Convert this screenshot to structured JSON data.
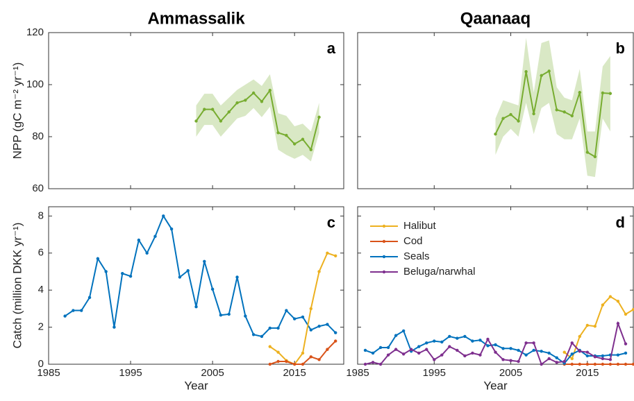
{
  "chart_data": [
    {
      "type": "line",
      "title": "Ammassalik",
      "panel_label": "a",
      "y_label": "NPP (gC m⁻² yr⁻¹)",
      "xlim": [
        1985,
        2021
      ],
      "xticks": [
        1985,
        1995,
        2005,
        2015
      ],
      "show_xtick_labels": false,
      "ylim": [
        60,
        120
      ],
      "yticks": [
        60,
        80,
        100,
        120
      ],
      "show_ytick_labels": true,
      "series": [
        {
          "color": "#77AC30",
          "x": [
            2003,
            2004,
            2005,
            2006,
            2007,
            2008,
            2009,
            2010,
            2011,
            2012,
            2013,
            2014,
            2015,
            2016,
            2017,
            2018
          ],
          "values": [
            86,
            90.5,
            90.5,
            86,
            89.5,
            93,
            94,
            96.8,
            93.5,
            97.8,
            81.5,
            80.5,
            77.2,
            79,
            75,
            87.5
          ],
          "band_upper": [
            92,
            96.5,
            96.5,
            92,
            95,
            98,
            100,
            102,
            99.5,
            104,
            89,
            88,
            84,
            85,
            82,
            93
          ],
          "band_lower": [
            80,
            84.5,
            84.5,
            80,
            83.5,
            87,
            88,
            91,
            87.5,
            91.5,
            75,
            73,
            71.5,
            73,
            70.5,
            81.5
          ]
        }
      ]
    },
    {
      "type": "line",
      "title": "Qaanaaq",
      "panel_label": "b",
      "xlim": [
        1985,
        2021
      ],
      "xticks": [
        1985,
        1995,
        2005,
        2015
      ],
      "show_xtick_labels": false,
      "ylim": [
        60,
        120
      ],
      "yticks": [
        60,
        80,
        100,
        120
      ],
      "show_ytick_labels": false,
      "series": [
        {
          "color": "#77AC30",
          "x": [
            2003,
            2004,
            2005,
            2006,
            2007,
            2008,
            2009,
            2010,
            2011,
            2012,
            2013,
            2014,
            2015,
            2016,
            2017,
            2018
          ],
          "values": [
            81,
            87,
            88.5,
            86,
            105,
            88.8,
            103.5,
            105.2,
            90.3,
            89.5,
            88,
            97,
            74,
            72.3,
            96.8,
            96.6
          ],
          "band_upper": [
            87,
            94,
            93,
            92,
            118,
            97,
            116,
            117,
            99,
            95,
            94,
            106,
            82,
            82,
            107,
            111
          ],
          "band_lower": [
            73,
            80,
            83,
            80,
            93,
            81,
            91,
            93,
            81,
            79,
            79,
            87,
            65,
            64.5,
            87,
            82
          ]
        }
      ]
    },
    {
      "type": "line",
      "panel_label": "c",
      "x_label": "Year",
      "y_label": "Catch (million DKK yr⁻¹)",
      "xlim": [
        1985,
        2021
      ],
      "xticks": [
        1985,
        1995,
        2005,
        2015
      ],
      "show_xtick_labels": true,
      "ylim": [
        0,
        8.5
      ],
      "yticks": [
        0,
        2,
        4,
        6,
        8
      ],
      "show_ytick_labels": true,
      "series": [
        {
          "color": "#0072BD",
          "x": [
            1987,
            1988,
            1989,
            1990,
            1991,
            1992,
            1993,
            1994,
            1995,
            1996,
            1997,
            1998,
            1999,
            2000,
            2001,
            2002,
            2003,
            2004,
            2005,
            2006,
            2007,
            2008,
            2009,
            2010,
            2011,
            2012,
            2013,
            2014,
            2015,
            2016,
            2017,
            2018,
            2019,
            2020
          ],
          "values": [
            2.6,
            2.9,
            2.9,
            3.6,
            5.7,
            5.0,
            2.0,
            4.9,
            4.75,
            6.7,
            6.0,
            6.9,
            8.0,
            7.3,
            4.7,
            5.05,
            3.1,
            5.55,
            4.05,
            2.65,
            2.7,
            4.7,
            2.6,
            1.6,
            1.5,
            1.95,
            1.95,
            2.9,
            2.45,
            2.55,
            1.85,
            2.05,
            2.15,
            1.7
          ]
        },
        {
          "color": "#EDB120",
          "x": [
            2012,
            2013,
            2014,
            2015,
            2016,
            2017,
            2018,
            2019,
            2020
          ],
          "values": [
            0.95,
            0.65,
            0.2,
            0.0,
            0.6,
            3.0,
            5.0,
            6.0,
            5.85
          ]
        },
        {
          "color": "#D95319",
          "x": [
            2012,
            2013,
            2014,
            2015,
            2016,
            2017,
            2018,
            2019,
            2020
          ],
          "values": [
            0,
            0.15,
            0.15,
            0.0,
            0.0,
            0.4,
            0.25,
            0.8,
            1.25
          ]
        }
      ]
    },
    {
      "type": "line",
      "panel_label": "d",
      "x_label": "Year",
      "legend": "upper left",
      "xlim": [
        1985,
        2021
      ],
      "xticks": [
        1985,
        1995,
        2005,
        2015
      ],
      "show_xtick_labels": true,
      "ylim": [
        0,
        8.5
      ],
      "yticks": [
        0,
        2,
        4,
        6,
        8
      ],
      "show_ytick_labels": false,
      "series": [
        {
          "name": "Halibut",
          "color": "#EDB120",
          "x": [
            2012,
            2013,
            2014,
            2015,
            2016,
            2017,
            2018,
            2019,
            2020,
            2021
          ],
          "values": [
            0.65,
            0.3,
            1.5,
            2.1,
            2.05,
            3.2,
            3.65,
            3.4,
            2.7,
            2.95
          ]
        },
        {
          "name": "Cod",
          "color": "#D95319",
          "x": [
            2012,
            2013,
            2014,
            2015,
            2016,
            2017,
            2018,
            2019,
            2020,
            2021
          ],
          "values": [
            0,
            0,
            0,
            0,
            0,
            0,
            0,
            0,
            0,
            0
          ]
        },
        {
          "name": "Seals",
          "color": "#0072BD",
          "x": [
            1986,
            1987,
            1988,
            1989,
            1990,
            1991,
            1992,
            1993,
            1994,
            1995,
            1996,
            1997,
            1998,
            1999,
            2000,
            2001,
            2002,
            2003,
            2004,
            2005,
            2006,
            2007,
            2008,
            2009,
            2010,
            2011,
            2012,
            2013,
            2014,
            2015,
            2016,
            2017,
            2018,
            2019,
            2020
          ],
          "values": [
            0.75,
            0.6,
            0.9,
            0.9,
            1.55,
            1.8,
            0.7,
            0.95,
            1.15,
            1.25,
            1.2,
            1.5,
            1.4,
            1.5,
            1.25,
            1.3,
            1.0,
            1.05,
            0.85,
            0.85,
            0.75,
            0.5,
            0.75,
            0.7,
            0.6,
            0.35,
            0.05,
            0.55,
            0.75,
            0.45,
            0.45,
            0.45,
            0.5,
            0.5,
            0.6
          ]
        },
        {
          "name": "Beluga/narwhal",
          "color": "#7E2F8E",
          "x": [
            1986,
            1987,
            1988,
            1989,
            1990,
            1991,
            1992,
            1993,
            1994,
            1995,
            1996,
            1997,
            1998,
            1999,
            2000,
            2001,
            2002,
            2003,
            2004,
            2005,
            2006,
            2007,
            2008,
            2009,
            2010,
            2011,
            2012,
            2013,
            2014,
            2015,
            2016,
            2017,
            2018,
            2019,
            2020
          ],
          "values": [
            0,
            0.1,
            0,
            0.5,
            0.8,
            0.55,
            0.8,
            0.6,
            0.8,
            0.25,
            0.5,
            0.95,
            0.75,
            0.45,
            0.6,
            0.5,
            1.35,
            0.65,
            0.25,
            0.2,
            0.15,
            1.15,
            1.15,
            0.0,
            0.3,
            0.1,
            0.15,
            1.15,
            0.7,
            0.65,
            0.4,
            0.3,
            0.25,
            2.2,
            1.1
          ]
        }
      ]
    }
  ]
}
